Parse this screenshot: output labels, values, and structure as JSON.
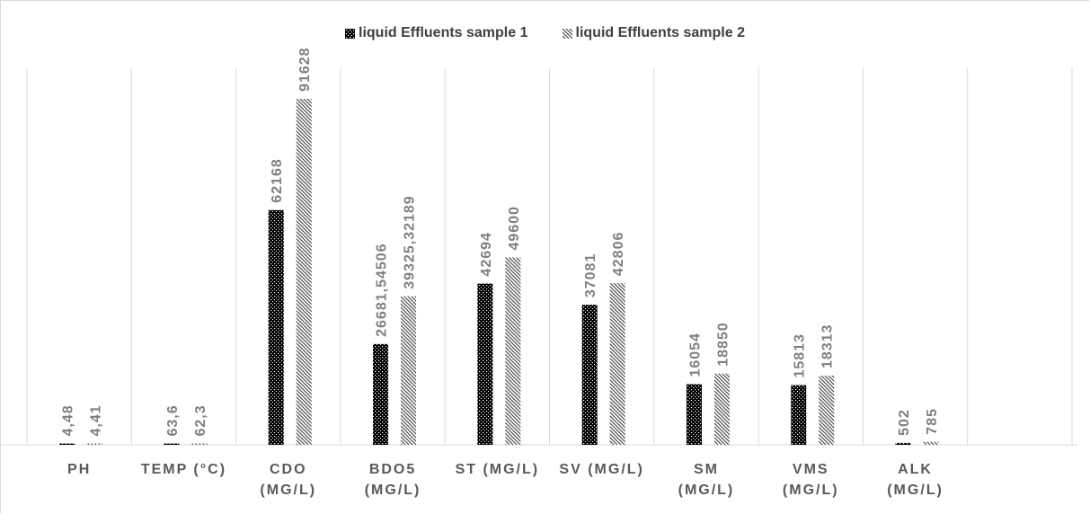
{
  "chart_data": {
    "type": "bar",
    "categories": [
      [
        "PH"
      ],
      [
        "TEMP (°C)"
      ],
      [
        "CDO",
        "(MG/L)"
      ],
      [
        "BDO5",
        "(MG/L)"
      ],
      [
        "ST (MG/L)"
      ],
      [
        "SV (MG/L)"
      ],
      [
        "SM",
        "(MG/L)"
      ],
      [
        "VMS",
        "(MG/L)"
      ],
      [
        "ALK",
        "(MG/L)"
      ]
    ],
    "series": [
      {
        "name": "liquid Effluents  sample 1",
        "values": [
          4.48,
          63.6,
          62168,
          26681.54506,
          42694,
          37081,
          16054,
          15813,
          502
        ],
        "labels": [
          "4,48",
          "63,6",
          "62168",
          "26681,54506",
          "42694",
          "37081",
          "16054",
          "15813",
          "502"
        ],
        "pattern": "dots"
      },
      {
        "name": "liquid Effluents  sample 2",
        "values": [
          4.41,
          62.3,
          91628,
          39325.32189,
          49600,
          42806,
          18850,
          18313,
          785
        ],
        "labels": [
          "4,41",
          "62,3",
          "91628",
          "39325,32189",
          "49600",
          "42806",
          "18850",
          "18313",
          "785"
        ],
        "pattern": "hatch"
      }
    ],
    "ylim": [
      0,
      100000
    ],
    "y_axis_visible": false,
    "grid": "vertical category separators",
    "legend_position": "top",
    "colors": {
      "sample1": "#000000",
      "sample2": "#595959",
      "gridline": "#d9d9d9",
      "label": "#7f7f7f",
      "category": "#595959"
    }
  }
}
